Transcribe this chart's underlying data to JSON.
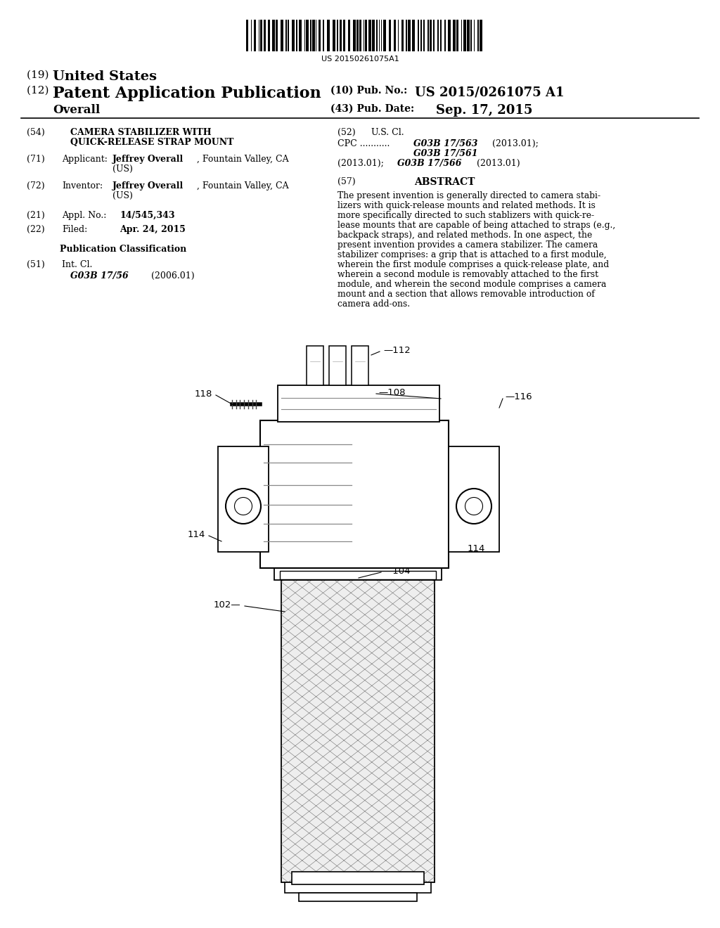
{
  "bg_color": "#ffffff",
  "barcode_text": "US 20150261075A1",
  "title19_prefix": "(19) ",
  "title19_main": "United States",
  "title12_prefix": "(12) ",
  "title12_main": "Patent Application Publication",
  "title_overall": "     Overall",
  "pub_no_label": "(10) Pub. No.:",
  "pub_no": "US 2015/0261075 A1",
  "pub_date_label": "(43) Pub. Date:",
  "pub_date": "Sep. 17, 2015",
  "abstract_text": "The present invention is generally directed to camera stabi-\nlizers with quick-release mounts and related methods. It is\nmore specifically directed to such stablizers with quick-re-\nlease mounts that are capable of being attached to straps (e.g.,\nbackpack straps), and related methods. In one aspect, the\npresent invention provides a camera stabilizer. The camera\nstabilizer comprises: a grip that is attached to a first module,\nwherein the first module comprises a quick-release plate, and\nwherein a second module is removably attached to the first\nmodule, and wherein the second module comprises a camera\nmount and a section that allows removable introduction of\ncamera add-ons."
}
